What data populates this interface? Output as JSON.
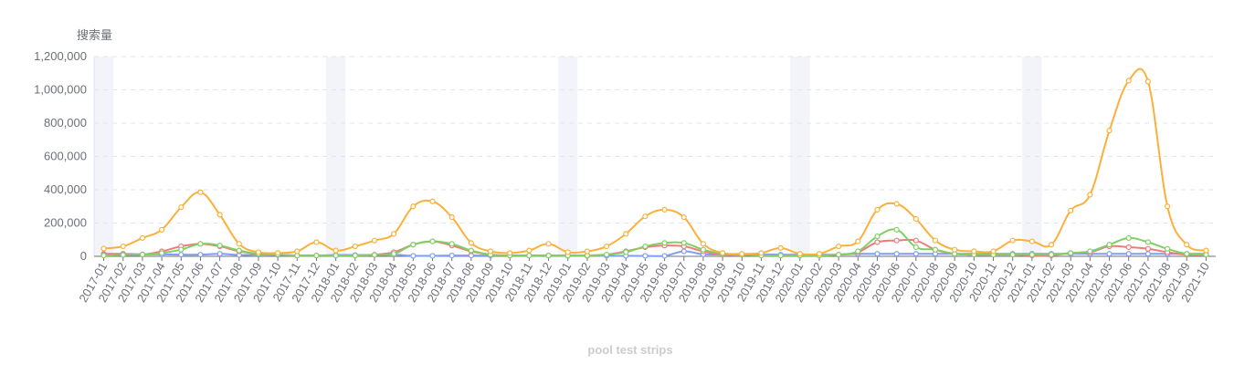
{
  "chart_data": {
    "type": "line",
    "title": "pool test strips",
    "ylabel": "搜索量",
    "ylim": [
      0,
      1200000
    ],
    "yticks": [
      0,
      200000,
      400000,
      600000,
      800000,
      1000000,
      1200000
    ],
    "grid": true,
    "smooth": true,
    "highlight_categories": [
      "2017-01",
      "2018-01",
      "2019-01",
      "2020-01",
      "2021-01"
    ],
    "categories": [
      "2017-01",
      "2017-02",
      "2017-03",
      "2017-04",
      "2017-05",
      "2017-06",
      "2017-07",
      "2017-08",
      "2017-09",
      "2017-10",
      "2017-11",
      "2017-12",
      "2018-01",
      "2018-02",
      "2018-03",
      "2018-04",
      "2018-05",
      "2018-06",
      "2018-07",
      "2018-08",
      "2018-09",
      "2018-10",
      "2018-11",
      "2018-12",
      "2019-01",
      "2019-02",
      "2019-03",
      "2019-04",
      "2019-05",
      "2019-06",
      "2019-07",
      "2019-08",
      "2019-09",
      "2019-10",
      "2019-11",
      "2019-12",
      "2020-01",
      "2020-02",
      "2020-03",
      "2020-04",
      "2020-05",
      "2020-06",
      "2020-07",
      "2020-08",
      "2020-09",
      "2020-10",
      "2020-11",
      "2020-12",
      "2021-01",
      "2021-02",
      "2021-03",
      "2021-04",
      "2021-05",
      "2021-06",
      "2021-07",
      "2021-08",
      "2021-09",
      "2021-10"
    ],
    "series": [
      {
        "color": "#fbb03b",
        "values": [
          47000,
          60000,
          110000,
          160000,
          295000,
          385000,
          250000,
          75000,
          25000,
          20000,
          30000,
          85000,
          35000,
          60000,
          95000,
          135000,
          300000,
          330000,
          235000,
          80000,
          30000,
          20000,
          35000,
          75000,
          25000,
          30000,
          60000,
          135000,
          240000,
          280000,
          235000,
          75000,
          20000,
          15000,
          20000,
          50000,
          15000,
          15000,
          60000,
          90000,
          280000,
          315000,
          225000,
          95000,
          40000,
          30000,
          30000,
          95000,
          90000,
          70000,
          275000,
          370000,
          755000,
          1055000,
          1050000,
          300000,
          70000,
          35000
        ]
      },
      {
        "color": "#7fd063",
        "values": [
          5000,
          8000,
          10000,
          20000,
          40000,
          75000,
          65000,
          35000,
          15000,
          10000,
          5000,
          5000,
          5000,
          5000,
          8000,
          15000,
          70000,
          90000,
          75000,
          35000,
          10000,
          5000,
          5000,
          5000,
          5000,
          5000,
          10000,
          25000,
          60000,
          80000,
          80000,
          40000,
          15000,
          10000,
          5000,
          5000,
          5000,
          5000,
          10000,
          30000,
          120000,
          160000,
          55000,
          40000,
          15000,
          10000,
          10000,
          10000,
          10000,
          10000,
          20000,
          30000,
          70000,
          110000,
          85000,
          45000,
          15000,
          10000
        ]
      },
      {
        "color": "#f07a7a",
        "values": [
          10000,
          10000,
          10000,
          30000,
          60000,
          75000,
          60000,
          30000,
          15000,
          10000,
          5000,
          5000,
          5000,
          5000,
          10000,
          25000,
          70000,
          90000,
          65000,
          30000,
          10000,
          5000,
          5000,
          5000,
          5000,
          5000,
          10000,
          30000,
          55000,
          65000,
          60000,
          30000,
          10000,
          10000,
          5000,
          5000,
          5000,
          5000,
          10000,
          25000,
          85000,
          95000,
          95000,
          40000,
          15000,
          10000,
          10000,
          10000,
          5000,
          5000,
          20000,
          25000,
          60000,
          55000,
          45000,
          25000,
          10000,
          10000
        ]
      },
      {
        "color": "#7f9ef3",
        "values": [
          15000,
          15000,
          12000,
          12000,
          10000,
          10000,
          15000,
          8000,
          10000,
          8000,
          5000,
          5000,
          8000,
          8000,
          8000,
          10000,
          3000,
          3000,
          5000,
          5000,
          5000,
          5000,
          5000,
          5000,
          3000,
          3000,
          3000,
          3000,
          3000,
          3000,
          30000,
          12000,
          12000,
          12000,
          12000,
          10000,
          10000,
          10000,
          10000,
          15000,
          15000,
          15000,
          15000,
          15000,
          15000,
          15000,
          15000,
          15000,
          15000,
          15000,
          15000,
          15000,
          15000,
          15000,
          15000,
          15000,
          15000,
          15000
        ]
      }
    ]
  }
}
